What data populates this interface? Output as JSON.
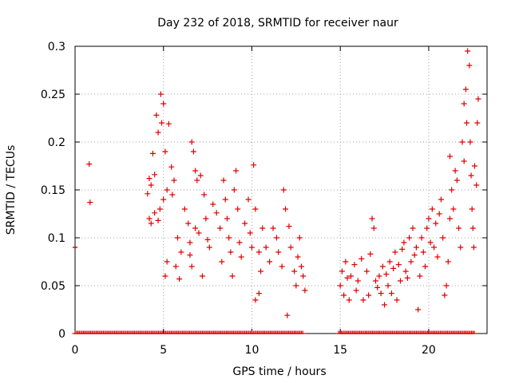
{
  "chart_data": {
    "type": "scatter",
    "title": "Day 232 of 2018, SRMTID for receiver naur",
    "xlabel": "GPS time / hours",
    "ylabel": "SRMTID / TECUs",
    "xlim": [
      0,
      23.3
    ],
    "ylim": [
      0,
      0.3
    ],
    "xticks": [
      0,
      5,
      10,
      15,
      20
    ],
    "xtick_labels": [
      "0",
      "5",
      "10",
      "15",
      "20"
    ],
    "yticks": [
      0,
      0.05,
      0.1,
      0.15,
      0.2,
      0.25,
      0.3
    ],
    "ytick_labels": [
      "0",
      "0.05",
      "0.1",
      "0.15",
      "0.2",
      "0.25",
      "0.3"
    ],
    "grid": true,
    "marker": "+",
    "series_color": "#e00000",
    "series": [
      {
        "name": "SRMTID",
        "points": [
          [
            0.8,
            0.177
          ],
          [
            0.85,
            0.137
          ],
          [
            4.1,
            0.146
          ],
          [
            4.2,
            0.162
          ],
          [
            4.3,
            0.155
          ],
          [
            4.4,
            0.188
          ],
          [
            4.5,
            0.166
          ],
          [
            4.6,
            0.228
          ],
          [
            4.7,
            0.21
          ],
          [
            4.8,
            0.13
          ],
          [
            4.85,
            0.25
          ],
          [
            4.9,
            0.22
          ],
          [
            5.0,
            0.24
          ],
          [
            5.1,
            0.19
          ],
          [
            5.3,
            0.219
          ],
          [
            5.45,
            0.174
          ],
          [
            5.5,
            0.145
          ],
          [
            4.2,
            0.12
          ],
          [
            4.3,
            0.115
          ],
          [
            4.5,
            0.126
          ],
          [
            4.7,
            0.118
          ],
          [
            5.0,
            0.14
          ],
          [
            5.2,
            0.15
          ],
          [
            5.1,
            0.06
          ],
          [
            5.2,
            0.075
          ],
          [
            5.6,
            0.16
          ],
          [
            5.8,
            0.1
          ],
          [
            6.0,
            0.085
          ],
          [
            5.7,
            0.07
          ],
          [
            5.9,
            0.057
          ],
          [
            6.2,
            0.13
          ],
          [
            6.4,
            0.115
          ],
          [
            6.5,
            0.095
          ],
          [
            6.6,
            0.2
          ],
          [
            6.7,
            0.19
          ],
          [
            6.8,
            0.17
          ],
          [
            6.9,
            0.16
          ],
          [
            6.5,
            0.082
          ],
          [
            6.6,
            0.07
          ],
          [
            6.8,
            0.11
          ],
          [
            7.0,
            0.105
          ],
          [
            7.2,
            0.06
          ],
          [
            7.1,
            0.165
          ],
          [
            7.3,
            0.145
          ],
          [
            7.4,
            0.12
          ],
          [
            7.5,
            0.098
          ],
          [
            7.6,
            0.09
          ],
          [
            7.8,
            0.135
          ],
          [
            8.0,
            0.126
          ],
          [
            8.2,
            0.11
          ],
          [
            8.3,
            0.075
          ],
          [
            8.4,
            0.16
          ],
          [
            8.5,
            0.14
          ],
          [
            8.6,
            0.12
          ],
          [
            8.7,
            0.1
          ],
          [
            8.8,
            0.085
          ],
          [
            8.9,
            0.06
          ],
          [
            9.0,
            0.15
          ],
          [
            9.1,
            0.17
          ],
          [
            9.2,
            0.13
          ],
          [
            9.3,
            0.095
          ],
          [
            9.4,
            0.08
          ],
          [
            9.6,
            0.115
          ],
          [
            9.8,
            0.14
          ],
          [
            9.9,
            0.105
          ],
          [
            10.0,
            0.09
          ],
          [
            10.1,
            0.176
          ],
          [
            10.2,
            0.13
          ],
          [
            10.4,
            0.085
          ],
          [
            10.5,
            0.065
          ],
          [
            10.6,
            0.11
          ],
          [
            10.8,
            0.09
          ],
          [
            11.0,
            0.075
          ],
          [
            10.2,
            0.035
          ],
          [
            10.4,
            0.042
          ],
          [
            11.2,
            0.11
          ],
          [
            11.4,
            0.1
          ],
          [
            11.5,
            0.085
          ],
          [
            11.7,
            0.07
          ],
          [
            11.8,
            0.15
          ],
          [
            11.9,
            0.13
          ],
          [
            12.0,
            0.019
          ],
          [
            12.1,
            0.112
          ],
          [
            12.2,
            0.09
          ],
          [
            12.4,
            0.065
          ],
          [
            12.5,
            0.05
          ],
          [
            12.6,
            0.08
          ],
          [
            12.7,
            0.1
          ],
          [
            12.8,
            0.07
          ],
          [
            12.9,
            0.06
          ],
          [
            13.0,
            0.045
          ],
          [
            15.0,
            0.05
          ],
          [
            15.1,
            0.065
          ],
          [
            15.2,
            0.04
          ],
          [
            15.3,
            0.075
          ],
          [
            15.4,
            0.058
          ],
          [
            15.5,
            0.035
          ],
          [
            15.6,
            0.06
          ],
          [
            15.8,
            0.072
          ],
          [
            15.9,
            0.045
          ],
          [
            16.0,
            0.055
          ],
          [
            16.2,
            0.078
          ],
          [
            16.3,
            0.035
          ],
          [
            16.5,
            0.065
          ],
          [
            16.6,
            0.04
          ],
          [
            16.7,
            0.083
          ],
          [
            16.8,
            0.12
          ],
          [
            16.9,
            0.11
          ],
          [
            17.0,
            0.055
          ],
          [
            17.1,
            0.048
          ],
          [
            17.2,
            0.06
          ],
          [
            17.3,
            0.042
          ],
          [
            17.4,
            0.07
          ],
          [
            17.5,
            0.03
          ],
          [
            17.6,
            0.062
          ],
          [
            17.7,
            0.05
          ],
          [
            17.8,
            0.075
          ],
          [
            17.9,
            0.042
          ],
          [
            18.0,
            0.068
          ],
          [
            18.1,
            0.085
          ],
          [
            18.2,
            0.035
          ],
          [
            18.3,
            0.072
          ],
          [
            18.4,
            0.055
          ],
          [
            18.5,
            0.088
          ],
          [
            18.6,
            0.095
          ],
          [
            18.7,
            0.065
          ],
          [
            18.8,
            0.058
          ],
          [
            18.9,
            0.1
          ],
          [
            19.0,
            0.075
          ],
          [
            19.1,
            0.11
          ],
          [
            19.2,
            0.082
          ],
          [
            19.3,
            0.09
          ],
          [
            19.4,
            0.025
          ],
          [
            19.5,
            0.06
          ],
          [
            19.6,
            0.1
          ],
          [
            19.7,
            0.085
          ],
          [
            19.8,
            0.07
          ],
          [
            19.9,
            0.11
          ],
          [
            20.0,
            0.12
          ],
          [
            20.1,
            0.095
          ],
          [
            20.2,
            0.13
          ],
          [
            20.3,
            0.09
          ],
          [
            20.4,
            0.115
          ],
          [
            20.5,
            0.08
          ],
          [
            20.6,
            0.125
          ],
          [
            20.7,
            0.14
          ],
          [
            20.8,
            0.1
          ],
          [
            20.9,
            0.04
          ],
          [
            21.0,
            0.05
          ],
          [
            21.1,
            0.075
          ],
          [
            21.2,
            0.12
          ],
          [
            21.2,
            0.185
          ],
          [
            21.3,
            0.15
          ],
          [
            21.4,
            0.13
          ],
          [
            21.5,
            0.17
          ],
          [
            21.6,
            0.16
          ],
          [
            21.7,
            0.11
          ],
          [
            21.8,
            0.09
          ],
          [
            21.9,
            0.2
          ],
          [
            22.0,
            0.18
          ],
          [
            22.0,
            0.24
          ],
          [
            22.1,
            0.255
          ],
          [
            22.15,
            0.22
          ],
          [
            22.2,
            0.295
          ],
          [
            22.3,
            0.28
          ],
          [
            22.35,
            0.2
          ],
          [
            22.4,
            0.165
          ],
          [
            22.45,
            0.13
          ],
          [
            22.5,
            0.11
          ],
          [
            22.55,
            0.09
          ],
          [
            22.6,
            0.175
          ],
          [
            22.7,
            0.155
          ],
          [
            22.75,
            0.22
          ],
          [
            22.8,
            0.245
          ]
        ]
      }
    ],
    "baseline_markers": {
      "segments": [
        [
          0.0,
          12.9
        ],
        [
          14.9,
          22.6
        ]
      ],
      "y": 0,
      "left_edge_tick_y": 0.09
    }
  }
}
